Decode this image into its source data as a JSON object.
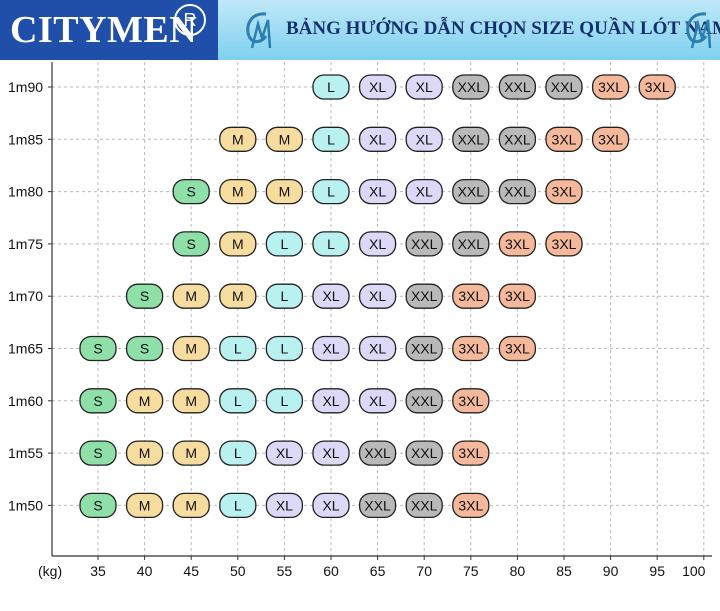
{
  "header": {
    "brand": "CITYMEN",
    "reg_symbol": "R",
    "title": "BẢNG HƯỚNG DẪN CHỌN SIZE QUẦN LÓT NAM"
  },
  "colors": {
    "S": "#8ee0a8",
    "M": "#f7dca0",
    "L": "#b9f1f1",
    "XL": "#dcd8f7",
    "XXL": "#b9b9b9",
    "3XL": "#f5b89a",
    "header_blue": "#1f4fa8",
    "title_cyan": "#7fd0ef"
  },
  "chart_data": {
    "type": "table",
    "title": "BẢNG HƯỚNG DẪN CHỌN SIZE QUẦN LÓT NAM",
    "xlabel": "(kg)",
    "ylabel": "",
    "x_ticks": [
      "35",
      "40",
      "45",
      "50",
      "55",
      "60",
      "65",
      "70",
      "75",
      "80",
      "85",
      "90",
      "95",
      "100"
    ],
    "xlim": [
      35,
      100
    ],
    "grid": true,
    "rows": [
      {
        "height": "1m90",
        "cells": [
          {
            "kg": 60,
            "size": "L"
          },
          {
            "kg": 65,
            "size": "XL"
          },
          {
            "kg": 70,
            "size": "XL"
          },
          {
            "kg": 75,
            "size": "XXL"
          },
          {
            "kg": 80,
            "size": "XXL"
          },
          {
            "kg": 85,
            "size": "XXL"
          },
          {
            "kg": 90,
            "size": "3XL"
          },
          {
            "kg": 95,
            "size": "3XL"
          }
        ]
      },
      {
        "height": "1m85",
        "cells": [
          {
            "kg": 50,
            "size": "M"
          },
          {
            "kg": 55,
            "size": "M"
          },
          {
            "kg": 60,
            "size": "L"
          },
          {
            "kg": 65,
            "size": "XL"
          },
          {
            "kg": 70,
            "size": "XL"
          },
          {
            "kg": 75,
            "size": "XXL"
          },
          {
            "kg": 80,
            "size": "XXL"
          },
          {
            "kg": 85,
            "size": "3XL"
          },
          {
            "kg": 90,
            "size": "3XL"
          }
        ]
      },
      {
        "height": "1m80",
        "cells": [
          {
            "kg": 45,
            "size": "S"
          },
          {
            "kg": 50,
            "size": "M"
          },
          {
            "kg": 55,
            "size": "M"
          },
          {
            "kg": 60,
            "size": "L"
          },
          {
            "kg": 65,
            "size": "XL"
          },
          {
            "kg": 70,
            "size": "XL"
          },
          {
            "kg": 75,
            "size": "XXL"
          },
          {
            "kg": 80,
            "size": "XXL"
          },
          {
            "kg": 85,
            "size": "3XL"
          }
        ]
      },
      {
        "height": "1m75",
        "cells": [
          {
            "kg": 45,
            "size": "S"
          },
          {
            "kg": 50,
            "size": "M"
          },
          {
            "kg": 55,
            "size": "L"
          },
          {
            "kg": 60,
            "size": "L"
          },
          {
            "kg": 65,
            "size": "XL"
          },
          {
            "kg": 70,
            "size": "XXL"
          },
          {
            "kg": 75,
            "size": "XXL"
          },
          {
            "kg": 80,
            "size": "3XL"
          },
          {
            "kg": 85,
            "size": "3XL"
          }
        ]
      },
      {
        "height": "1m70",
        "cells": [
          {
            "kg": 40,
            "size": "S"
          },
          {
            "kg": 45,
            "size": "M"
          },
          {
            "kg": 50,
            "size": "M"
          },
          {
            "kg": 55,
            "size": "L"
          },
          {
            "kg": 60,
            "size": "XL"
          },
          {
            "kg": 65,
            "size": "XL"
          },
          {
            "kg": 70,
            "size": "XXL"
          },
          {
            "kg": 75,
            "size": "3XL"
          },
          {
            "kg": 80,
            "size": "3XL"
          }
        ]
      },
      {
        "height": "1m65",
        "cells": [
          {
            "kg": 35,
            "size": "S"
          },
          {
            "kg": 40,
            "size": "S"
          },
          {
            "kg": 45,
            "size": "M"
          },
          {
            "kg": 50,
            "size": "L"
          },
          {
            "kg": 55,
            "size": "L"
          },
          {
            "kg": 60,
            "size": "XL"
          },
          {
            "kg": 65,
            "size": "XL"
          },
          {
            "kg": 70,
            "size": "XXL"
          },
          {
            "kg": 75,
            "size": "3XL"
          },
          {
            "kg": 80,
            "size": "3XL"
          }
        ]
      },
      {
        "height": "1m60",
        "cells": [
          {
            "kg": 35,
            "size": "S"
          },
          {
            "kg": 40,
            "size": "M"
          },
          {
            "kg": 45,
            "size": "M"
          },
          {
            "kg": 50,
            "size": "L"
          },
          {
            "kg": 55,
            "size": "L"
          },
          {
            "kg": 60,
            "size": "XL"
          },
          {
            "kg": 65,
            "size": "XL"
          },
          {
            "kg": 70,
            "size": "XXL"
          },
          {
            "kg": 75,
            "size": "3XL"
          }
        ]
      },
      {
        "height": "1m55",
        "cells": [
          {
            "kg": 35,
            "size": "S"
          },
          {
            "kg": 40,
            "size": "M"
          },
          {
            "kg": 45,
            "size": "M"
          },
          {
            "kg": 50,
            "size": "L"
          },
          {
            "kg": 55,
            "size": "XL"
          },
          {
            "kg": 60,
            "size": "XL"
          },
          {
            "kg": 65,
            "size": "XXL"
          },
          {
            "kg": 70,
            "size": "XXL"
          },
          {
            "kg": 75,
            "size": "3XL"
          }
        ]
      },
      {
        "height": "1m50",
        "cells": [
          {
            "kg": 35,
            "size": "S"
          },
          {
            "kg": 40,
            "size": "M"
          },
          {
            "kg": 45,
            "size": "M"
          },
          {
            "kg": 50,
            "size": "L"
          },
          {
            "kg": 55,
            "size": "XL"
          },
          {
            "kg": 60,
            "size": "XL"
          },
          {
            "kg": 65,
            "size": "XXL"
          },
          {
            "kg": 70,
            "size": "XXL"
          },
          {
            "kg": 75,
            "size": "3XL"
          }
        ]
      }
    ]
  }
}
